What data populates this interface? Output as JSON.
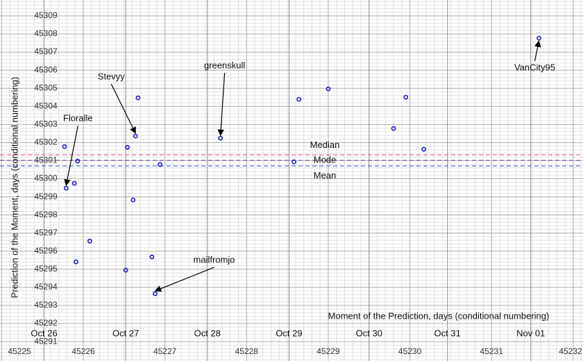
{
  "chart_data": {
    "type": "scatter",
    "x_label": "Moment of the Prediction, days (conditional numbering)",
    "y_label": "Prediction of the Moment, days (conditional numbering)",
    "xlim": [
      45224.98,
      45232.12
    ],
    "ylim": [
      45289.93,
      45309.88
    ],
    "xticks": [
      45225,
      45226,
      45227,
      45228,
      45229,
      45230,
      45231,
      45232
    ],
    "date_ticks": [
      {
        "value": 45225.52,
        "label": "Oct 26"
      },
      {
        "value": 45226.52,
        "label": "Oct 27"
      },
      {
        "value": 45227.52,
        "label": "Oct 28"
      },
      {
        "value": 45228.52,
        "label": "Oct 29"
      },
      {
        "value": 45229.5,
        "label": "Oct 30"
      },
      {
        "value": 45230.46,
        "label": "Oct 31"
      },
      {
        "value": 45231.48,
        "label": "Nov 01"
      }
    ],
    "yticks": [
      45291,
      45292,
      45293,
      45294,
      45295,
      45296,
      45297,
      45298,
      45299,
      45300,
      45301,
      45302,
      45303,
      45304,
      45305,
      45306,
      45307,
      45308,
      45309
    ],
    "grid": true,
    "color": "#1a1adb",
    "x": [
      45225.77,
      45225.79,
      45225.89,
      45225.93,
      45225.91,
      45226.08,
      45226.52,
      45226.54,
      45226.61,
      45226.64,
      45226.67,
      45226.84,
      45226.88,
      45226.94,
      45227.68,
      45228.58,
      45228.64,
      45229.0,
      45229.8,
      45229.95,
      45230.17,
      45231.58
    ],
    "values": [
      45301.78,
      45299.48,
      45299.75,
      45300.98,
      45295.41,
      45296.56,
      45294.95,
      45301.74,
      45298.83,
      45302.36,
      45304.47,
      45295.68,
      45293.65,
      45300.79,
      45302.24,
      45300.94,
      45304.39,
      45304.97,
      45302.78,
      45304.51,
      45301.63,
      45307.77
    ],
    "point_labels": [
      null,
      "Floralle",
      null,
      null,
      null,
      null,
      null,
      null,
      null,
      "Stevyy",
      null,
      null,
      "mailfromjo",
      null,
      "greenskull",
      null,
      null,
      null,
      null,
      null,
      null,
      "VanCity95"
    ],
    "reference_lines": [
      {
        "name": "Median",
        "value": 45301.32,
        "color": "#e0709a"
      },
      {
        "name": "Mode",
        "value": 45301.02,
        "color": "#8a5ab0"
      },
      {
        "name": "Mean",
        "value": 45300.71,
        "color": "#4a6ad8"
      }
    ]
  }
}
